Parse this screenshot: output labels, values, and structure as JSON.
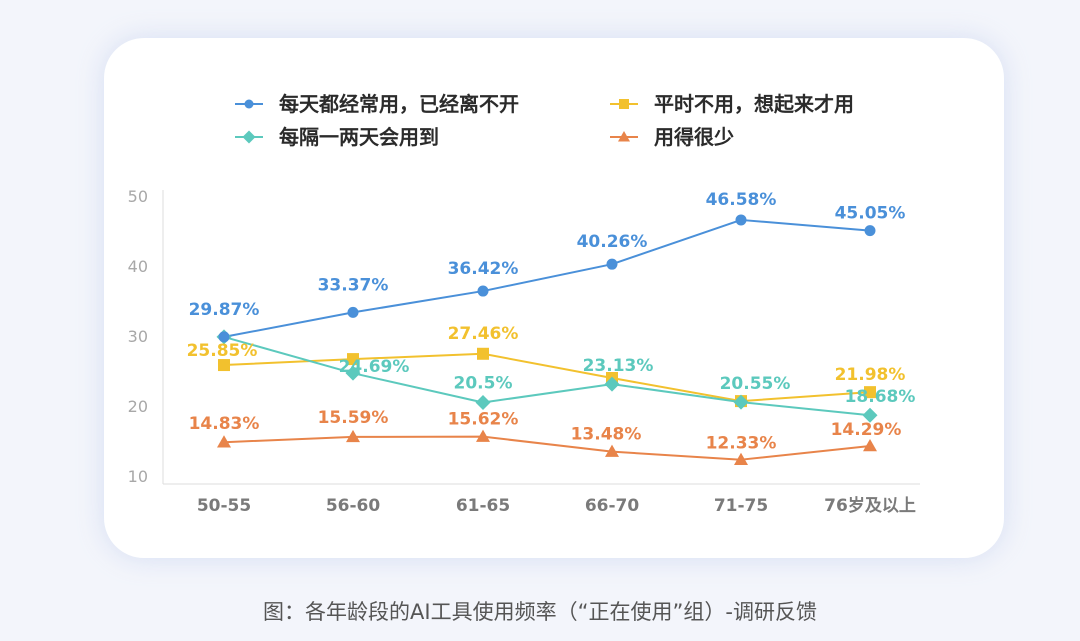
{
  "caption": "图：各年龄段的AI工具使用频率（“正在使用”组）-调研反馈",
  "chart_data": {
    "type": "line",
    "categories": [
      "50-55",
      "56-60",
      "61-65",
      "66-70",
      "71-75",
      "76岁及以上"
    ],
    "yticks": [
      10,
      20,
      30,
      40,
      50
    ],
    "ylim": [
      10,
      50
    ],
    "grid": false,
    "legend_position": "top",
    "series": [
      {
        "name": "每天都经常用，已经离不开",
        "color": "#4a90d9",
        "marker": "circle",
        "values": [
          29.87,
          33.37,
          36.42,
          40.26,
          46.58,
          45.05
        ],
        "labels": [
          "29.87%",
          "33.37%",
          "36.42%",
          "40.26%",
          "46.58%",
          "45.05%"
        ]
      },
      {
        "name": "平时不用，想起来才用",
        "color": "#f2c12e",
        "marker": "square",
        "values": [
          25.85,
          26.7,
          27.46,
          24.0,
          20.7,
          21.98
        ],
        "labels": [
          "25.85%",
          "",
          "27.46%",
          "",
          "",
          "21.98%"
        ]
      },
      {
        "name": "每隔一两天会用到",
        "color": "#5cc9bd",
        "marker": "diamond",
        "values": [
          29.87,
          24.69,
          20.5,
          23.13,
          20.55,
          18.68
        ],
        "labels": [
          "",
          "24.69%",
          "20.5%",
          "23.13%",
          "20.55%",
          "18.68%"
        ]
      },
      {
        "name": "用得很少",
        "color": "#e8844a",
        "marker": "triangle",
        "values": [
          14.83,
          15.59,
          15.62,
          13.48,
          12.33,
          14.29
        ],
        "labels": [
          "14.83%",
          "15.59%",
          "15.62%",
          "13.48%",
          "12.33%",
          "14.29%"
        ]
      }
    ]
  }
}
